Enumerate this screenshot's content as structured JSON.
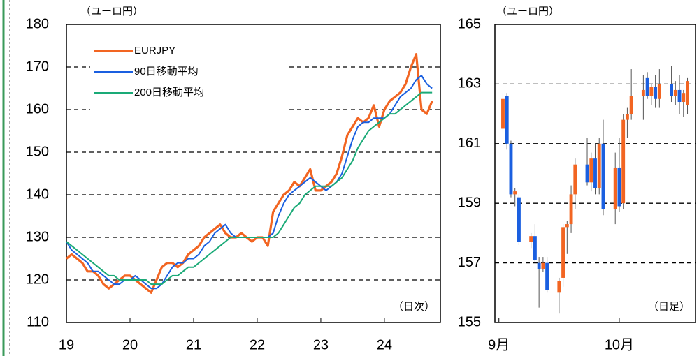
{
  "chart_data": [
    {
      "type": "line",
      "unit_label": "（ユーロ円）",
      "note": "（日次）",
      "legend": "upper left",
      "grid": true,
      "xlim": [
        2019,
        2024.88
      ],
      "xticks": [
        {
          "value": 2019,
          "label": "19"
        },
        {
          "value": 2020,
          "label": "20"
        },
        {
          "value": 2021,
          "label": "21"
        },
        {
          "value": 2022,
          "label": "22"
        },
        {
          "value": 2023,
          "label": "23"
        },
        {
          "value": 2024,
          "label": "24"
        }
      ],
      "ylim": [
        110,
        180
      ],
      "yticks": [
        110,
        120,
        130,
        140,
        150,
        160,
        170,
        180
      ],
      "x": [
        2019.0,
        2019.083,
        2019.167,
        2019.25,
        2019.333,
        2019.417,
        2019.5,
        2019.583,
        2019.667,
        2019.75,
        2019.833,
        2019.917,
        2020.0,
        2020.083,
        2020.167,
        2020.25,
        2020.333,
        2020.417,
        2020.5,
        2020.583,
        2020.667,
        2020.75,
        2020.833,
        2020.917,
        2021.0,
        2021.083,
        2021.167,
        2021.25,
        2021.333,
        2021.417,
        2021.5,
        2021.583,
        2021.667,
        2021.75,
        2021.833,
        2021.917,
        2022.0,
        2022.083,
        2022.167,
        2022.25,
        2022.333,
        2022.417,
        2022.5,
        2022.583,
        2022.667,
        2022.75,
        2022.833,
        2022.917,
        2023.0,
        2023.083,
        2023.167,
        2023.25,
        2023.333,
        2023.417,
        2023.5,
        2023.583,
        2023.667,
        2023.75,
        2023.833,
        2023.917,
        2024.0,
        2024.083,
        2024.167,
        2024.25,
        2024.333,
        2024.417,
        2024.5,
        2024.583,
        2024.667,
        2024.75
      ],
      "series": [
        {
          "name": "EURJPY",
          "color": "#f26522",
          "values": [
            125,
            126,
            125,
            124,
            122,
            122,
            121,
            119,
            118,
            119,
            120,
            121,
            121,
            120,
            119,
            118,
            117,
            120,
            123,
            124,
            124,
            123,
            124,
            126,
            127,
            128,
            130,
            131,
            132,
            133,
            131,
            130,
            130,
            131,
            130,
            129,
            130,
            130,
            128,
            136,
            138,
            140,
            141,
            143,
            142,
            144,
            146,
            141,
            141,
            142,
            143,
            145,
            149,
            154,
            156,
            158,
            157,
            158,
            161,
            156,
            160,
            162,
            163,
            164,
            166,
            170,
            173,
            160,
            159,
            162
          ]
        },
        {
          "name": "90日移動平均",
          "color": "#1a5fe0",
          "values": [
            129,
            127,
            126,
            125,
            124,
            122,
            122,
            121,
            120,
            119,
            119,
            120,
            120,
            121,
            120,
            119,
            118,
            118,
            119,
            121,
            123,
            124,
            124,
            125,
            125,
            126,
            128,
            129,
            131,
            132,
            133,
            131,
            130,
            130,
            130,
            130,
            130,
            130,
            130,
            131,
            135,
            138,
            140,
            141,
            142,
            143,
            144,
            143,
            142,
            141,
            142,
            143,
            145,
            149,
            153,
            156,
            157,
            157,
            158,
            158,
            158,
            159,
            161,
            163,
            164,
            165,
            167,
            168,
            166,
            165
          ]
        },
        {
          "name": "200日移動平均",
          "color": "#1aaa77",
          "values": [
            129,
            128,
            127,
            126,
            125,
            124,
            123,
            122,
            121,
            121,
            120,
            120,
            120,
            120,
            120,
            120,
            119,
            119,
            119,
            120,
            121,
            121,
            122,
            123,
            123,
            124,
            125,
            126,
            127,
            128,
            129,
            130,
            130,
            130,
            130,
            130,
            130,
            130,
            130,
            130,
            131,
            133,
            135,
            137,
            138,
            140,
            141,
            142,
            142,
            142,
            142,
            143,
            144,
            146,
            148,
            151,
            153,
            155,
            156,
            157,
            158,
            159,
            159,
            160,
            161,
            162,
            163,
            164,
            164,
            164
          ]
        }
      ]
    },
    {
      "type": "candlestick",
      "unit_label": "（ユーロ円）",
      "note": "（日足）",
      "grid": true,
      "up_color": "#f26522",
      "down_color": "#1a5fe0",
      "xlim": [
        0,
        50
      ],
      "xticks": [
        {
          "value": 1,
          "label": "9月"
        },
        {
          "value": 31,
          "label": "10月"
        }
      ],
      "ylim": [
        155,
        165
      ],
      "yticks": [
        155,
        157,
        159,
        161,
        163,
        165
      ],
      "x": [
        2,
        3,
        4,
        5,
        6,
        9,
        10,
        11,
        12,
        13,
        16,
        17,
        18,
        19,
        20,
        23,
        24,
        25,
        26,
        27,
        30,
        31,
        32,
        33,
        34,
        37,
        38,
        39,
        40,
        41,
        44,
        45,
        46,
        47,
        48
      ],
      "open": [
        161.5,
        162.6,
        161.0,
        159.3,
        159.2,
        157.7,
        157.9,
        157.0,
        156.8,
        157.0,
        156.0,
        156.5,
        158.2,
        158.3,
        159.3,
        160.3,
        159.7,
        160.5,
        159.5,
        161.0,
        158.8,
        160.2,
        159.0,
        161.8,
        162.0,
        162.6,
        163.2,
        162.6,
        162.9,
        162.5,
        163.0,
        162.6,
        162.8,
        162.4,
        162.3
      ],
      "high": [
        162.7,
        162.7,
        161.1,
        159.5,
        159.3,
        158.0,
        158.3,
        157.2,
        157.2,
        157.2,
        156.5,
        158.3,
        158.4,
        159.6,
        160.5,
        161.2,
        160.7,
        161.0,
        161.2,
        161.8,
        160.7,
        161.2,
        162.0,
        162.2,
        163.5,
        163.3,
        163.4,
        163.0,
        163.3,
        163.5,
        163.6,
        163.1,
        163.3,
        162.8,
        163.2
      ],
      "low": [
        161.4,
        160.8,
        159.2,
        158.9,
        157.6,
        157.5,
        157.0,
        155.5,
        156.7,
        156.0,
        155.3,
        156.2,
        157.3,
        158.0,
        158.8,
        159.6,
        159.4,
        159.3,
        159.3,
        158.6,
        158.3,
        158.7,
        158.8,
        161.2,
        161.8,
        161.8,
        162.5,
        162.3,
        162.2,
        162.2,
        162.4,
        162.3,
        162.0,
        161.9,
        162.0
      ],
      "close": [
        162.5,
        161.0,
        159.3,
        159.4,
        157.7,
        157.9,
        157.1,
        156.8,
        157.0,
        156.1,
        156.4,
        158.2,
        158.3,
        159.3,
        160.3,
        159.7,
        160.5,
        159.5,
        161.0,
        158.8,
        160.2,
        158.9,
        161.8,
        162.0,
        162.6,
        162.8,
        162.6,
        162.9,
        162.5,
        163.0,
        162.6,
        162.8,
        162.4,
        162.7,
        163.1
      ]
    }
  ]
}
